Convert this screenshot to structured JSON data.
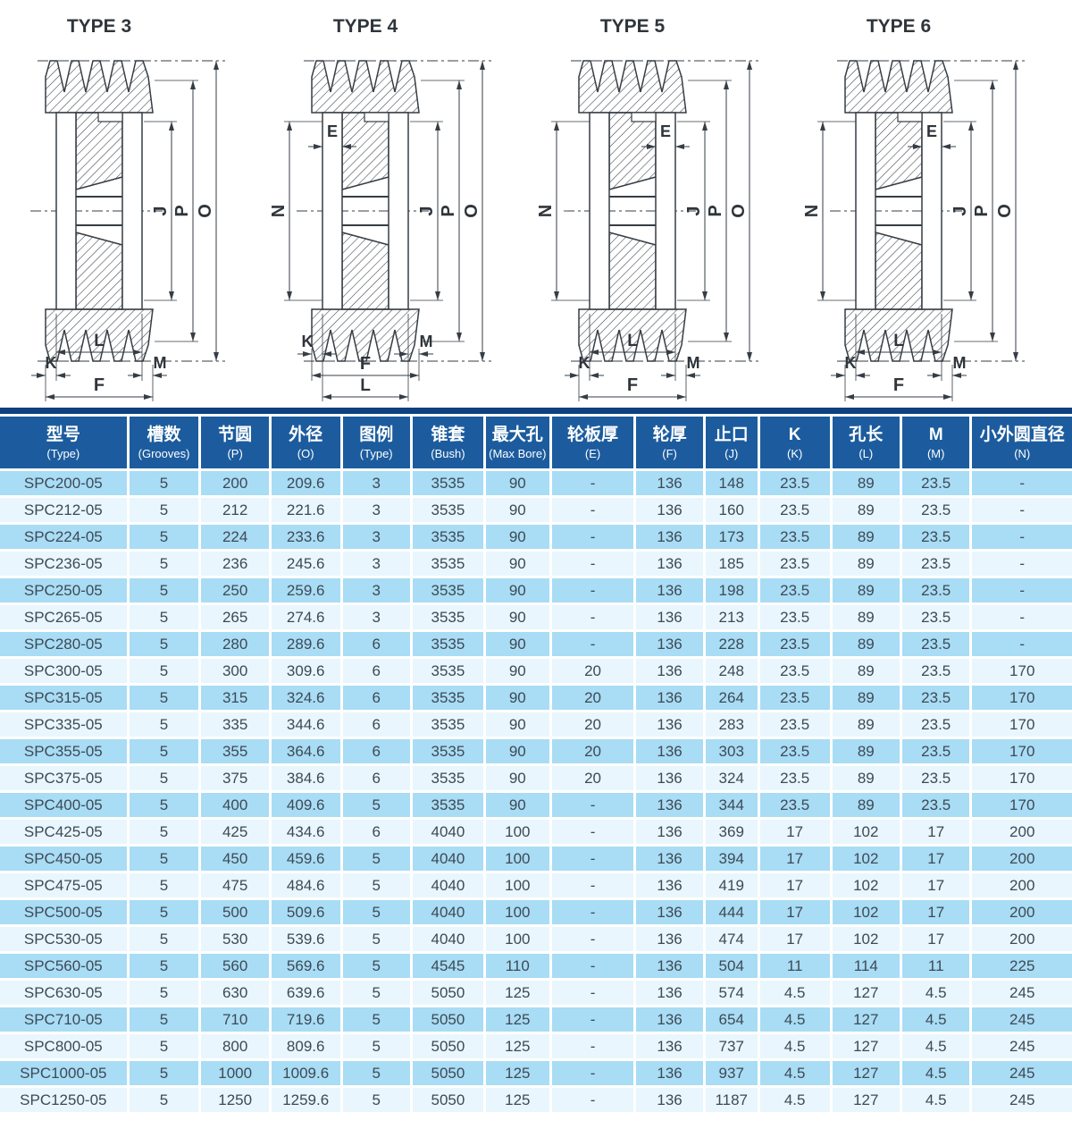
{
  "diagrams": [
    {
      "title": "TYPE 3",
      "dims": {
        "J": "J",
        "P": "P",
        "O": "O",
        "L": "L",
        "K": "K",
        "M": "M",
        "F": "F"
      }
    },
    {
      "title": "TYPE 4",
      "dims": {
        "N": "N",
        "E": "E",
        "J": "J",
        "P": "P",
        "O": "O",
        "L": "L",
        "K": "K",
        "M": "M",
        "F": "F"
      }
    },
    {
      "title": "TYPE 5",
      "dims": {
        "N": "N",
        "E": "E",
        "J": "J",
        "P": "P",
        "O": "O",
        "L": "L",
        "K": "K",
        "M": "M",
        "F": "F"
      }
    },
    {
      "title": "TYPE 6",
      "dims": {
        "N": "N",
        "E": "E",
        "J": "J",
        "P": "P",
        "O": "O",
        "L": "L",
        "K": "K",
        "M": "M",
        "F": "F"
      }
    }
  ],
  "table": {
    "colors": {
      "top_strip": "#0d4180",
      "header_bg": "#1c5c9e",
      "row_odd_bg": "#a9dcf5",
      "row_even_bg": "#e9f6fd",
      "cell_text": "#3d4a55",
      "header_text": "#ffffff"
    },
    "columns": [
      {
        "key": "type",
        "zh": "型号",
        "en": "(Type)"
      },
      {
        "key": "grooves",
        "zh": "槽数",
        "en": "(Grooves)"
      },
      {
        "key": "p",
        "zh": "节圆",
        "en": "(P)"
      },
      {
        "key": "o",
        "zh": "外径",
        "en": "(O)"
      },
      {
        "key": "legend",
        "zh": "图例",
        "en": "(Type)"
      },
      {
        "key": "bush",
        "zh": "锥套",
        "en": "(Bush)"
      },
      {
        "key": "max-bore",
        "zh": "最大孔",
        "en": "(Max Bore)"
      },
      {
        "key": "e",
        "zh": "轮板厚",
        "en": "(E)"
      },
      {
        "key": "f",
        "zh": "轮厚",
        "en": "(F)"
      },
      {
        "key": "j",
        "zh": "止口",
        "en": "(J)"
      },
      {
        "key": "k",
        "zh": "K",
        "en": "(K)"
      },
      {
        "key": "l",
        "zh": "孔长",
        "en": "(L)"
      },
      {
        "key": "m",
        "zh": "M",
        "en": "(M)"
      },
      {
        "key": "n",
        "zh": "小外圆直径",
        "en": "(N)"
      }
    ],
    "rows": [
      [
        "SPC200-05",
        "5",
        "200",
        "209.6",
        "3",
        "3535",
        "90",
        "-",
        "136",
        "148",
        "23.5",
        "89",
        "23.5",
        "-"
      ],
      [
        "SPC212-05",
        "5",
        "212",
        "221.6",
        "3",
        "3535",
        "90",
        "-",
        "136",
        "160",
        "23.5",
        "89",
        "23.5",
        "-"
      ],
      [
        "SPC224-05",
        "5",
        "224",
        "233.6",
        "3",
        "3535",
        "90",
        "-",
        "136",
        "173",
        "23.5",
        "89",
        "23.5",
        "-"
      ],
      [
        "SPC236-05",
        "5",
        "236",
        "245.6",
        "3",
        "3535",
        "90",
        "-",
        "136",
        "185",
        "23.5",
        "89",
        "23.5",
        "-"
      ],
      [
        "SPC250-05",
        "5",
        "250",
        "259.6",
        "3",
        "3535",
        "90",
        "-",
        "136",
        "198",
        "23.5",
        "89",
        "23.5",
        "-"
      ],
      [
        "SPC265-05",
        "5",
        "265",
        "274.6",
        "3",
        "3535",
        "90",
        "-",
        "136",
        "213",
        "23.5",
        "89",
        "23.5",
        "-"
      ],
      [
        "SPC280-05",
        "5",
        "280",
        "289.6",
        "6",
        "3535",
        "90",
        "-",
        "136",
        "228",
        "23.5",
        "89",
        "23.5",
        "-"
      ],
      [
        "SPC300-05",
        "5",
        "300",
        "309.6",
        "6",
        "3535",
        "90",
        "20",
        "136",
        "248",
        "23.5",
        "89",
        "23.5",
        "170"
      ],
      [
        "SPC315-05",
        "5",
        "315",
        "324.6",
        "6",
        "3535",
        "90",
        "20",
        "136",
        "264",
        "23.5",
        "89",
        "23.5",
        "170"
      ],
      [
        "SPC335-05",
        "5",
        "335",
        "344.6",
        "6",
        "3535",
        "90",
        "20",
        "136",
        "283",
        "23.5",
        "89",
        "23.5",
        "170"
      ],
      [
        "SPC355-05",
        "5",
        "355",
        "364.6",
        "6",
        "3535",
        "90",
        "20",
        "136",
        "303",
        "23.5",
        "89",
        "23.5",
        "170"
      ],
      [
        "SPC375-05",
        "5",
        "375",
        "384.6",
        "6",
        "3535",
        "90",
        "20",
        "136",
        "324",
        "23.5",
        "89",
        "23.5",
        "170"
      ],
      [
        "SPC400-05",
        "5",
        "400",
        "409.6",
        "5",
        "3535",
        "90",
        "-",
        "136",
        "344",
        "23.5",
        "89",
        "23.5",
        "170"
      ],
      [
        "SPC425-05",
        "5",
        "425",
        "434.6",
        "6",
        "4040",
        "100",
        "-",
        "136",
        "369",
        "17",
        "102",
        "17",
        "200"
      ],
      [
        "SPC450-05",
        "5",
        "450",
        "459.6",
        "5",
        "4040",
        "100",
        "-",
        "136",
        "394",
        "17",
        "102",
        "17",
        "200"
      ],
      [
        "SPC475-05",
        "5",
        "475",
        "484.6",
        "5",
        "4040",
        "100",
        "-",
        "136",
        "419",
        "17",
        "102",
        "17",
        "200"
      ],
      [
        "SPC500-05",
        "5",
        "500",
        "509.6",
        "5",
        "4040",
        "100",
        "-",
        "136",
        "444",
        "17",
        "102",
        "17",
        "200"
      ],
      [
        "SPC530-05",
        "5",
        "530",
        "539.6",
        "5",
        "4040",
        "100",
        "-",
        "136",
        "474",
        "17",
        "102",
        "17",
        "200"
      ],
      [
        "SPC560-05",
        "5",
        "560",
        "569.6",
        "5",
        "4545",
        "110",
        "-",
        "136",
        "504",
        "11",
        "114",
        "11",
        "225"
      ],
      [
        "SPC630-05",
        "5",
        "630",
        "639.6",
        "5",
        "5050",
        "125",
        "-",
        "136",
        "574",
        "4.5",
        "127",
        "4.5",
        "245"
      ],
      [
        "SPC710-05",
        "5",
        "710",
        "719.6",
        "5",
        "5050",
        "125",
        "-",
        "136",
        "654",
        "4.5",
        "127",
        "4.5",
        "245"
      ],
      [
        "SPC800-05",
        "5",
        "800",
        "809.6",
        "5",
        "5050",
        "125",
        "-",
        "136",
        "737",
        "4.5",
        "127",
        "4.5",
        "245"
      ],
      [
        "SPC1000-05",
        "5",
        "1000",
        "1009.6",
        "5",
        "5050",
        "125",
        "-",
        "136",
        "937",
        "4.5",
        "127",
        "4.5",
        "245"
      ],
      [
        "SPC1250-05",
        "5",
        "1250",
        "1259.6",
        "5",
        "5050",
        "125",
        "-",
        "136",
        "1187",
        "4.5",
        "127",
        "4.5",
        "245"
      ]
    ]
  }
}
